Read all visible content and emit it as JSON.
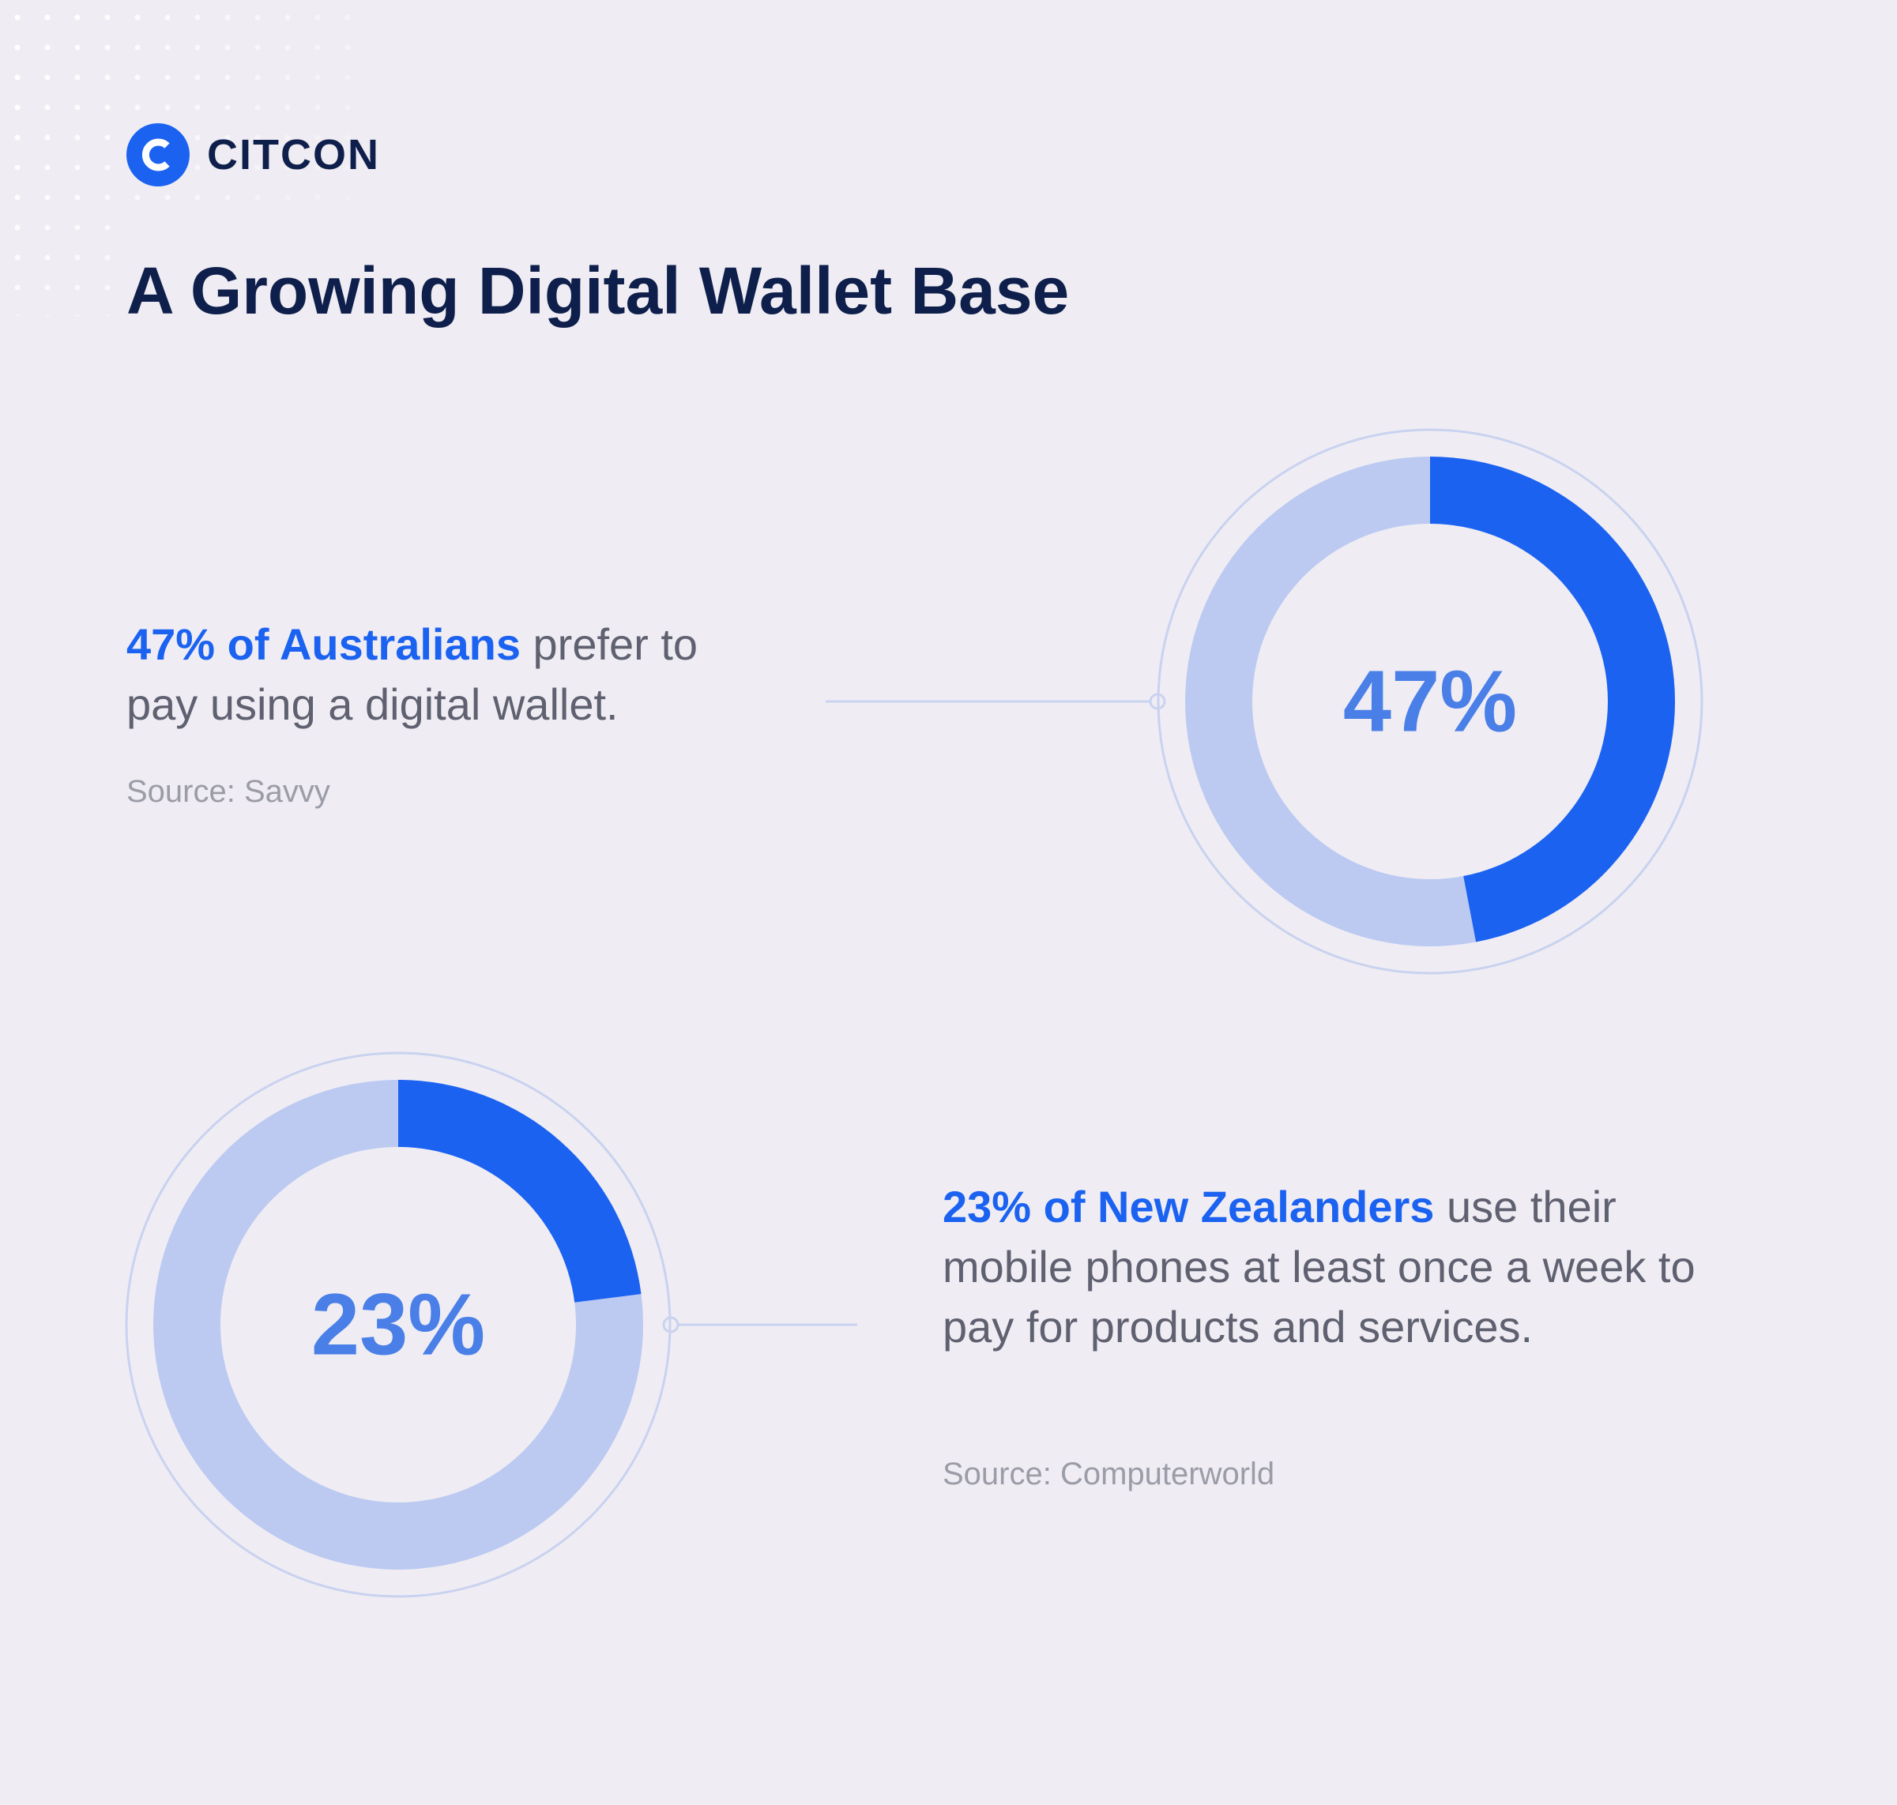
{
  "brand": {
    "name": "CITCON"
  },
  "title": "A Growing Digital Wallet Base",
  "colors": {
    "accent": "#1b62f1",
    "track": "#bccaf2",
    "label": "#4a7fe8",
    "title": "#0f1f4b",
    "body": "#5f6070",
    "source": "#9b9ca7",
    "outline": "#c9d2ef",
    "background": "#efedf3"
  },
  "stats": [
    {
      "highlight": "47% of Australians",
      "rest": " prefer to pay using a digital wallet.",
      "source": "Source: Savvy"
    },
    {
      "highlight": "23% of New Zealanders",
      "rest": " use their mobile phones at least once a week to pay for products and services.",
      "source": "Source: Computerworld"
    }
  ],
  "chart_data": [
    {
      "type": "pie",
      "style": "donut",
      "values": [
        47,
        53
      ],
      "center_label": "47%"
    },
    {
      "type": "pie",
      "style": "donut",
      "values": [
        23,
        77
      ],
      "center_label": "23%"
    }
  ]
}
